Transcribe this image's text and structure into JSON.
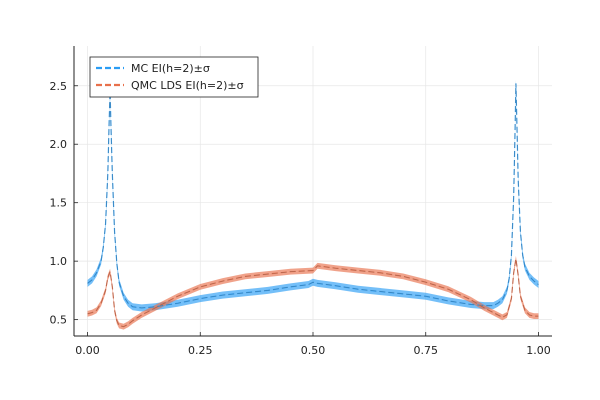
{
  "chart_data": {
    "type": "line",
    "title": "",
    "xlabel": "",
    "ylabel": "",
    "xlim": [
      -0.03,
      1.03
    ],
    "ylim": [
      0.36,
      2.84
    ],
    "grid": true,
    "legend_position": "top-left",
    "x_ticks": [
      {
        "value": 0.0,
        "label": "0.00"
      },
      {
        "value": 0.25,
        "label": "0.25"
      },
      {
        "value": 0.5,
        "label": "0.50"
      },
      {
        "value": 0.75,
        "label": "0.75"
      },
      {
        "value": 1.0,
        "label": "1.00"
      }
    ],
    "y_ticks": [
      {
        "value": 0.5,
        "label": "0.5"
      },
      {
        "value": 1.0,
        "label": "1.0"
      },
      {
        "value": 1.5,
        "label": "1.5"
      },
      {
        "value": 2.0,
        "label": "2.0"
      },
      {
        "value": 2.5,
        "label": "2.5"
      }
    ],
    "series": [
      {
        "name": "MC EI(h=2)±σ",
        "color": "#2a9df4",
        "band": 0.03,
        "points": [
          [
            0.0,
            0.81
          ],
          [
            0.01,
            0.84
          ],
          [
            0.02,
            0.9
          ],
          [
            0.03,
            1.0
          ],
          [
            0.035,
            1.12
          ],
          [
            0.04,
            1.32
          ],
          [
            0.045,
            1.75
          ],
          [
            0.048,
            2.2
          ],
          [
            0.05,
            2.45
          ],
          [
            0.052,
            2.15
          ],
          [
            0.055,
            1.75
          ],
          [
            0.06,
            1.25
          ],
          [
            0.065,
            0.98
          ],
          [
            0.07,
            0.82
          ],
          [
            0.08,
            0.7
          ],
          [
            0.09,
            0.64
          ],
          [
            0.1,
            0.61
          ],
          [
            0.12,
            0.6
          ],
          [
            0.15,
            0.61
          ],
          [
            0.2,
            0.64
          ],
          [
            0.25,
            0.68
          ],
          [
            0.3,
            0.71
          ],
          [
            0.35,
            0.73
          ],
          [
            0.4,
            0.75
          ],
          [
            0.45,
            0.78
          ],
          [
            0.49,
            0.8
          ],
          [
            0.5,
            0.82
          ],
          [
            0.51,
            0.81
          ],
          [
            0.55,
            0.79
          ],
          [
            0.6,
            0.76
          ],
          [
            0.65,
            0.74
          ],
          [
            0.7,
            0.72
          ],
          [
            0.75,
            0.7
          ],
          [
            0.8,
            0.66
          ],
          [
            0.85,
            0.63
          ],
          [
            0.88,
            0.62
          ],
          [
            0.9,
            0.62
          ],
          [
            0.91,
            0.64
          ],
          [
            0.92,
            0.67
          ],
          [
            0.93,
            0.75
          ],
          [
            0.935,
            0.85
          ],
          [
            0.94,
            1.05
          ],
          [
            0.945,
            1.55
          ],
          [
            0.948,
            2.1
          ],
          [
            0.95,
            2.52
          ],
          [
            0.952,
            2.2
          ],
          [
            0.955,
            1.7
          ],
          [
            0.96,
            1.25
          ],
          [
            0.965,
            1.05
          ],
          [
            0.97,
            0.95
          ],
          [
            0.98,
            0.87
          ],
          [
            0.99,
            0.83
          ],
          [
            1.0,
            0.8
          ]
        ]
      },
      {
        "name": "QMC LDS EI(h=2)±σ",
        "color": "#e8704b",
        "band": 0.025,
        "points": [
          [
            0.0,
            0.55
          ],
          [
            0.01,
            0.56
          ],
          [
            0.02,
            0.58
          ],
          [
            0.03,
            0.64
          ],
          [
            0.04,
            0.75
          ],
          [
            0.045,
            0.86
          ],
          [
            0.05,
            0.91
          ],
          [
            0.055,
            0.78
          ],
          [
            0.06,
            0.58
          ],
          [
            0.065,
            0.49
          ],
          [
            0.07,
            0.45
          ],
          [
            0.08,
            0.44
          ],
          [
            0.09,
            0.46
          ],
          [
            0.1,
            0.49
          ],
          [
            0.12,
            0.54
          ],
          [
            0.15,
            0.6
          ],
          [
            0.2,
            0.7
          ],
          [
            0.25,
            0.78
          ],
          [
            0.3,
            0.83
          ],
          [
            0.35,
            0.87
          ],
          [
            0.4,
            0.89
          ],
          [
            0.45,
            0.91
          ],
          [
            0.5,
            0.92
          ],
          [
            0.51,
            0.96
          ],
          [
            0.55,
            0.94
          ],
          [
            0.6,
            0.92
          ],
          [
            0.65,
            0.9
          ],
          [
            0.7,
            0.87
          ],
          [
            0.75,
            0.82
          ],
          [
            0.8,
            0.76
          ],
          [
            0.85,
            0.67
          ],
          [
            0.88,
            0.6
          ],
          [
            0.9,
            0.56
          ],
          [
            0.92,
            0.52
          ],
          [
            0.93,
            0.54
          ],
          [
            0.94,
            0.68
          ],
          [
            0.945,
            0.9
          ],
          [
            0.95,
            1.02
          ],
          [
            0.955,
            0.88
          ],
          [
            0.96,
            0.7
          ],
          [
            0.97,
            0.58
          ],
          [
            0.98,
            0.54
          ],
          [
            0.99,
            0.53
          ],
          [
            1.0,
            0.53
          ]
        ]
      }
    ]
  }
}
